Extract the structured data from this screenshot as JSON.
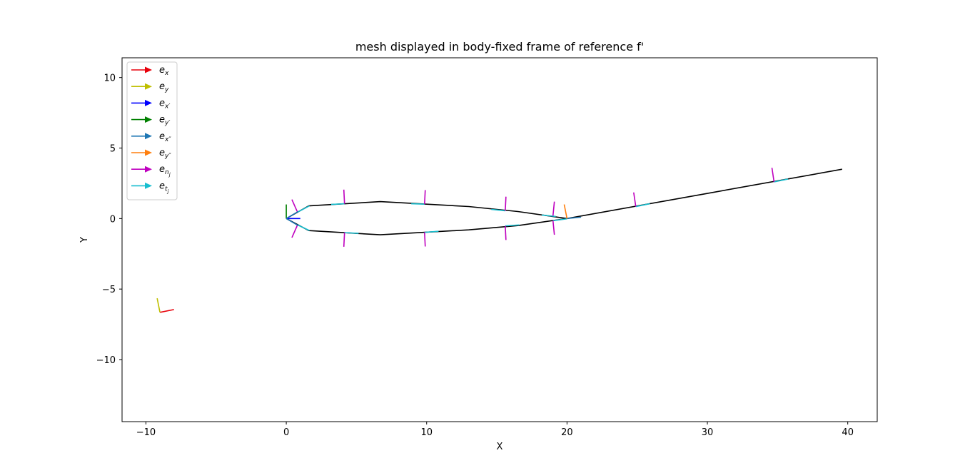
{
  "chart_data": {
    "type": "line",
    "title": "mesh displayed in body-fixed frame of reference f'",
    "xlabel": "X",
    "ylabel": "Y",
    "xlim": [
      -11.7,
      42.1
    ],
    "ylim": [
      -14.4,
      11.4
    ],
    "xticks": [
      -10,
      0,
      10,
      20,
      30,
      40
    ],
    "yticks": [
      -10,
      -5,
      0,
      5,
      10
    ],
    "xtick_labels": [
      "−10",
      "0",
      "10",
      "20",
      "30",
      "40"
    ],
    "ytick_labels": [
      "−10",
      "−5",
      "0",
      "5",
      "10"
    ],
    "grid": false,
    "legend_position": "top-left",
    "legend": [
      {
        "base": "e",
        "sub": "x",
        "color": "#e8000b"
      },
      {
        "base": "e",
        "sub": "y",
        "color": "#bfbf00"
      },
      {
        "base": "e",
        "sub": "x′",
        "color": "#0000ff"
      },
      {
        "base": "e",
        "sub": "y′",
        "color": "#008000"
      },
      {
        "base": "e",
        "sub": "x″",
        "color": "#1f77b4"
      },
      {
        "base": "e",
        "sub": "y″",
        "color": "#ff7f0e"
      },
      {
        "base": "e",
        "sub": "n",
        "subsub": "j",
        "color": "#bf00bf"
      },
      {
        "base": "e",
        "sub": "t",
        "subsub": "j",
        "color": "#17becf"
      }
    ],
    "series": [
      {
        "color": "#000000",
        "x": [
          0,
          1.6,
          6.7,
          13,
          16.5,
          20,
          29.8,
          39.6
        ],
        "y": [
          0,
          0.9,
          1.2,
          0.85,
          0.5,
          0,
          1.75,
          3.5
        ]
      },
      {
        "color": "#000000",
        "x": [
          0,
          1.6,
          6.7,
          13,
          16.5,
          20
        ],
        "y": [
          0,
          -0.85,
          -1.15,
          -0.8,
          -0.5,
          0
        ]
      }
    ],
    "frames": [
      {
        "color": "#e8000b",
        "x": [
          -9.0,
          -8.0
        ],
        "y": [
          -6.65,
          -6.45
        ]
      },
      {
        "color": "#bfbf00",
        "x": [
          -9.0,
          -9.2
        ],
        "y": [
          -6.65,
          -5.65
        ]
      },
      {
        "color": "#0000ff",
        "x": [
          0,
          1.0
        ],
        "y": [
          0,
          0
        ]
      },
      {
        "color": "#008000",
        "x": [
          0,
          0
        ],
        "y": [
          0,
          1.0
        ]
      },
      {
        "color": "#1f77b4",
        "x": [
          0,
          0.85
        ],
        "y": [
          0,
          0.5
        ]
      },
      {
        "color": "#1f77b4",
        "x": [
          0,
          0.85
        ],
        "y": [
          0,
          -0.5
        ]
      },
      {
        "color": "#1f77b4",
        "x": [
          20,
          21
        ],
        "y": [
          0,
          0.1
        ]
      },
      {
        "color": "#ff7f0e",
        "x": [
          20,
          19.8
        ],
        "y": [
          0,
          1.0
        ]
      }
    ],
    "panel_normals": [
      {
        "x": [
          0.8,
          0.4
        ],
        "y": [
          0.45,
          1.35
        ]
      },
      {
        "x": [
          4.15,
          4.1
        ],
        "y": [
          1.05,
          2.05
        ]
      },
      {
        "x": [
          9.85,
          9.9
        ],
        "y": [
          1.02,
          2.02
        ]
      },
      {
        "x": [
          15.6,
          15.65
        ],
        "y": [
          0.55,
          1.55
        ]
      },
      {
        "x": [
          19.0,
          19.1
        ],
        "y": [
          0.2,
          1.2
        ]
      },
      {
        "x": [
          24.9,
          24.75
        ],
        "y": [
          0.85,
          1.85
        ]
      },
      {
        "x": [
          34.75,
          34.6
        ],
        "y": [
          2.6,
          3.6
        ]
      },
      {
        "x": [
          0.8,
          0.4
        ],
        "y": [
          -0.45,
          -1.35
        ]
      },
      {
        "x": [
          4.15,
          4.1
        ],
        "y": [
          -1.0,
          -2.0
        ]
      },
      {
        "x": [
          9.85,
          9.9
        ],
        "y": [
          -0.98,
          -1.98
        ]
      },
      {
        "x": [
          15.6,
          15.65
        ],
        "y": [
          -0.52,
          -1.52
        ]
      },
      {
        "x": [
          19.0,
          19.1
        ],
        "y": [
          -0.15,
          -1.15
        ]
      }
    ],
    "panel_tangents": [
      {
        "x": [
          0.8,
          1.65
        ],
        "y": [
          0.45,
          0.9
        ]
      },
      {
        "x": [
          3.2,
          4.15
        ],
        "y": [
          1.0,
          1.05
        ]
      },
      {
        "x": [
          8.9,
          9.85
        ],
        "y": [
          1.05,
          1.02
        ]
      },
      {
        "x": [
          14.6,
          15.6
        ],
        "y": [
          0.65,
          0.55
        ]
      },
      {
        "x": [
          18.2,
          19.2
        ],
        "y": [
          0.25,
          0.15
        ]
      },
      {
        "x": [
          24.9,
          25.9
        ],
        "y": [
          0.85,
          1.05
        ]
      },
      {
        "x": [
          34.75,
          35.75
        ],
        "y": [
          2.6,
          2.8
        ]
      },
      {
        "x": [
          0.8,
          1.65
        ],
        "y": [
          -0.45,
          -0.85
        ]
      },
      {
        "x": [
          4.15,
          5.15
        ],
        "y": [
          -1.0,
          -1.05
        ]
      },
      {
        "x": [
          9.85,
          10.85
        ],
        "y": [
          -0.98,
          -0.9
        ]
      },
      {
        "x": [
          15.6,
          16.6
        ],
        "y": [
          -0.52,
          -0.45
        ]
      },
      {
        "x": [
          19.0,
          20.0
        ],
        "y": [
          -0.15,
          -0.02
        ]
      }
    ]
  }
}
